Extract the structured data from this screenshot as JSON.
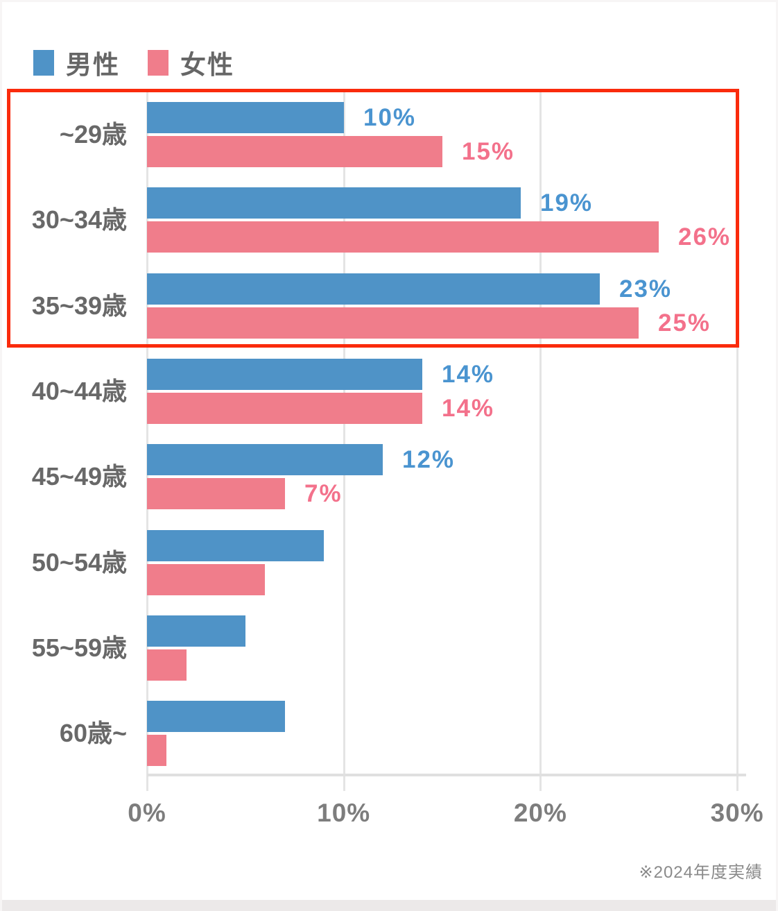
{
  "legend": {
    "male_label": "男性",
    "female_label": "女性"
  },
  "chart_data": {
    "type": "bar",
    "orientation": "horizontal",
    "title": "",
    "categories": [
      "~29歳",
      "30~34歳",
      "35~39歳",
      "40~44歳",
      "45~49歳",
      "50~54歳",
      "55~59歳",
      "60歳~"
    ],
    "series": [
      {
        "name": "男性",
        "color": "#4f93c7",
        "label_color": "#4a94d0",
        "values": [
          10,
          19,
          23,
          14,
          12,
          9,
          5,
          7
        ],
        "labels": [
          "10%",
          "19%",
          "23%",
          "14%",
          "12%",
          "",
          "",
          ""
        ]
      },
      {
        "name": "女性",
        "color": "#f07d8b",
        "label_color": "#f3718b",
        "values": [
          15,
          26,
          25,
          14,
          7,
          6,
          2,
          1
        ],
        "labels": [
          "15%",
          "26%",
          "25%",
          "14%",
          "7%",
          "",
          "",
          ""
        ]
      }
    ],
    "x_ticks": [
      {
        "value": 0,
        "label": "0%"
      },
      {
        "value": 10,
        "label": "10%"
      },
      {
        "value": 20,
        "label": "20%"
      },
      {
        "value": 30,
        "label": "30%"
      }
    ],
    "xlim": [
      0,
      30
    ],
    "grid": true,
    "legend_position": "top-left",
    "highlight": {
      "from_category": "~29歳",
      "to_category": "35~39歳",
      "border_color": "#fa2b0c"
    },
    "annotation": "※2024年度実績"
  },
  "colors": {
    "male_bar": "#4f93c7",
    "female_bar": "#f07d8b",
    "male_value_text": "#4a94d0",
    "female_value_text": "#f3718b",
    "category_text": "#686868",
    "axis_text": "#7d7d7d",
    "gridline": "#e4e4e4",
    "axis_line": "#e0e0e0",
    "footnote_text": "#8a8a8a",
    "highlight_border": "#fa2b0c",
    "bottom_strip": "#ece9e9",
    "page_edge": "#f7f5f5"
  }
}
